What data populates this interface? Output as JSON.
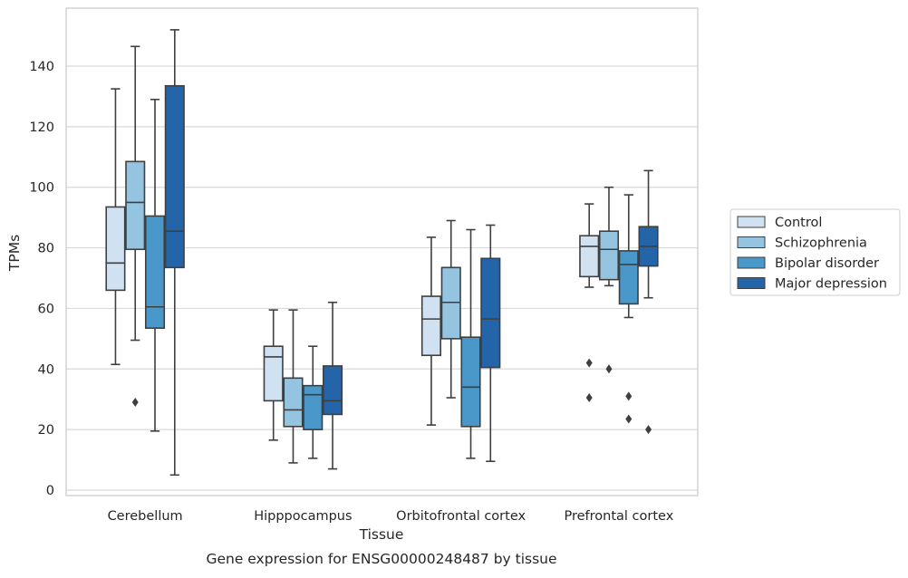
{
  "chart_data": {
    "type": "box",
    "caption": "Gene expression for ENSG00000248487 by tissue",
    "xlabel": "Tissue",
    "ylabel": "TPMs",
    "ylim": [
      -2,
      159
    ],
    "yticks": [
      0,
      20,
      40,
      60,
      80,
      100,
      120,
      140
    ],
    "grid": "horizontal",
    "legend_position": "right",
    "categories": [
      "Cerebellum",
      "Hipppocampus",
      "Orbitofrontal cortex",
      "Prefrontal cortex"
    ],
    "series": [
      {
        "name": "Control",
        "color": "#d0e1f2",
        "boxes": [
          {
            "min": 41.5,
            "q1": 66,
            "median": 75,
            "q3": 93.5,
            "max": 132.5,
            "outliers": []
          },
          {
            "min": 16.5,
            "q1": 29.5,
            "median": 44,
            "q3": 47.5,
            "max": 59.5,
            "outliers": []
          },
          {
            "min": 21.5,
            "q1": 44.5,
            "median": 56.5,
            "q3": 64,
            "max": 83.5,
            "outliers": []
          },
          {
            "min": 67,
            "q1": 70.5,
            "median": 80.5,
            "q3": 84,
            "max": 94.5,
            "outliers": [
              42,
              30.5
            ]
          }
        ]
      },
      {
        "name": "Schizophrenia",
        "color": "#94c4df",
        "boxes": [
          {
            "min": 49.5,
            "q1": 79.5,
            "median": 95,
            "q3": 108.5,
            "max": 146.5,
            "outliers": [
              29
            ]
          },
          {
            "min": 9,
            "q1": 21,
            "median": 26.5,
            "q3": 37,
            "max": 59.5,
            "outliers": []
          },
          {
            "min": 30.5,
            "q1": 50,
            "median": 62,
            "q3": 73.5,
            "max": 89,
            "outliers": []
          },
          {
            "min": 67.5,
            "q1": 69.5,
            "median": 79.5,
            "q3": 85.5,
            "max": 100,
            "outliers": [
              40
            ]
          }
        ]
      },
      {
        "name": "Bipolar disorder",
        "color": "#4a98c9",
        "boxes": [
          {
            "min": 19.5,
            "q1": 53.5,
            "median": 60.5,
            "q3": 90.5,
            "max": 129,
            "outliers": []
          },
          {
            "min": 10.5,
            "q1": 20,
            "median": 31.5,
            "q3": 34.5,
            "max": 47.5,
            "outliers": []
          },
          {
            "min": 10.5,
            "q1": 21,
            "median": 34,
            "q3": 50.5,
            "max": 86,
            "outliers": []
          },
          {
            "min": 57,
            "q1": 61.5,
            "median": 74.5,
            "q3": 79,
            "max": 97.5,
            "outliers": [
              31,
              23.5
            ]
          }
        ]
      },
      {
        "name": "Major depression",
        "color": "#2464a9",
        "boxes": [
          {
            "min": 5,
            "q1": 73.5,
            "median": 85.5,
            "q3": 133.5,
            "max": 152,
            "outliers": []
          },
          {
            "min": 7,
            "q1": 25,
            "median": 29.5,
            "q3": 41,
            "max": 62,
            "outliers": []
          },
          {
            "min": 9.5,
            "q1": 40.5,
            "median": 56.5,
            "q3": 76.5,
            "max": 87.5,
            "outliers": []
          },
          {
            "min": 63.5,
            "q1": 74,
            "median": 80.5,
            "q3": 87,
            "max": 105.5,
            "outliers": [
              20
            ]
          }
        ]
      }
    ]
  }
}
